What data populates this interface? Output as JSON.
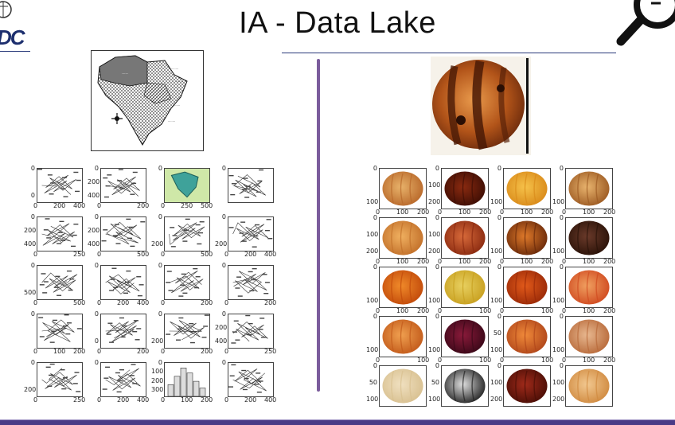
{
  "slide": {
    "title": "IA - Data Lake",
    "logo_left_text": "DC",
    "colors": {
      "title": "#111111",
      "divider": "#7b5c9c",
      "footer": "#4a3a86",
      "accent_blue": "#1d2f6e"
    }
  },
  "left_grid": {
    "cells": [
      {
        "y_ticks": [
          "0",
          "0"
        ],
        "x_ticks": [
          "0",
          "200",
          "400"
        ]
      },
      {
        "y_ticks": [
          "0",
          "200",
          "400"
        ],
        "x_ticks": [
          "0",
          "200"
        ]
      },
      {
        "y_ticks": [
          "0"
        ],
        "x_ticks": [
          "0",
          "250",
          "500"
        ]
      },
      {
        "y_ticks": [
          "0"
        ],
        "x_ticks": []
      },
      {
        "y_ticks": [
          "0",
          "200",
          "400"
        ],
        "x_ticks": [
          "0",
          "250"
        ]
      },
      {
        "y_ticks": [
          "0",
          "200",
          "400"
        ],
        "x_ticks": [
          "0",
          "500"
        ]
      },
      {
        "y_ticks": [
          "0",
          "200"
        ],
        "x_ticks": [
          "0",
          "500"
        ]
      },
      {
        "y_ticks": [
          "0",
          "200"
        ],
        "x_ticks": [
          "0",
          "200",
          "400"
        ]
      },
      {
        "y_ticks": [
          "0",
          "500"
        ],
        "x_ticks": [
          "0",
          "500"
        ]
      },
      {
        "y_ticks": [
          "0"
        ],
        "x_ticks": [
          "0",
          "200",
          "400"
        ]
      },
      {
        "y_ticks": [
          "0"
        ],
        "x_ticks": [
          "0",
          "200"
        ]
      },
      {
        "y_ticks": [
          "0"
        ],
        "x_ticks": [
          "0",
          "200"
        ]
      },
      {
        "y_ticks": [
          "0"
        ],
        "x_ticks": [
          "0",
          "100",
          "200"
        ]
      },
      {
        "y_ticks": [
          "0",
          "0"
        ],
        "x_ticks": [
          "0",
          "200"
        ]
      },
      {
        "y_ticks": [
          "0",
          "200"
        ],
        "x_ticks": [
          "0",
          "200"
        ]
      },
      {
        "y_ticks": [
          "0",
          "200",
          "400"
        ],
        "x_ticks": [
          "0",
          "250"
        ]
      },
      {
        "y_ticks": [
          "0",
          "200"
        ],
        "x_ticks": [
          "0",
          "250"
        ]
      },
      {
        "y_ticks": [
          "0"
        ],
        "x_ticks": [
          "0",
          "200",
          "400"
        ]
      },
      {
        "y_ticks": [
          "0",
          "100",
          "200",
          "300"
        ],
        "x_ticks": [
          "0",
          "100",
          "200"
        ]
      },
      {
        "y_ticks": [
          "0"
        ],
        "x_ticks": [
          "0",
          "200",
          "400"
        ]
      }
    ]
  },
  "right_grid": {
    "cells": [
      {
        "y_ticks": [
          "0",
          "100"
        ],
        "x_ticks": [
          "0",
          "100",
          "200"
        ]
      },
      {
        "y_ticks": [
          "0",
          "100",
          "200"
        ],
        "x_ticks": [
          "0",
          "100",
          "200"
        ]
      },
      {
        "y_ticks": [
          "0",
          "100"
        ],
        "x_ticks": [
          "0",
          "100",
          "200"
        ]
      },
      {
        "y_ticks": [
          "0",
          "100"
        ],
        "x_ticks": [
          "0",
          "100",
          "200"
        ]
      },
      {
        "y_ticks": [
          "0",
          "100",
          "200"
        ],
        "x_ticks": [
          "0",
          "100",
          "200"
        ]
      },
      {
        "y_ticks": [
          "0",
          "100",
          "200"
        ],
        "x_ticks": [
          "0",
          "100",
          "200"
        ]
      },
      {
        "y_ticks": [
          "0",
          "100"
        ],
        "x_ticks": [
          "0",
          "100",
          "200"
        ]
      },
      {
        "y_ticks": [
          "0",
          "100"
        ],
        "x_ticks": [
          "0",
          "100",
          "200"
        ]
      },
      {
        "y_ticks": [
          "0",
          "100"
        ],
        "x_ticks": [
          "0",
          "100",
          "200"
        ]
      },
      {
        "y_ticks": [
          "0",
          "100"
        ],
        "x_ticks": [
          "0",
          "100"
        ]
      },
      {
        "y_ticks": [
          "0",
          "100"
        ],
        "x_ticks": [
          "0",
          "100"
        ]
      },
      {
        "y_ticks": [
          "0",
          "100"
        ],
        "x_ticks": [
          "0",
          "100",
          "200"
        ]
      },
      {
        "y_ticks": [
          "0",
          "100"
        ],
        "x_ticks": [
          "0",
          "100"
        ]
      },
      {
        "y_ticks": [
          "0",
          "100"
        ],
        "x_ticks": [
          "0",
          "100"
        ]
      },
      {
        "y_ticks": [
          "0",
          "50",
          "100"
        ],
        "x_ticks": [
          "0",
          "100"
        ]
      },
      {
        "y_ticks": [
          "0",
          "100"
        ],
        "x_ticks": [
          "0",
          "100",
          "200"
        ]
      },
      {
        "y_ticks": [
          "0",
          "50",
          "100"
        ],
        "x_ticks": []
      },
      {
        "y_ticks": [
          "0",
          "50",
          "100"
        ],
        "x_ticks": []
      },
      {
        "y_ticks": [
          "0",
          "100",
          "200"
        ],
        "x_ticks": []
      },
      {
        "y_ticks": [
          "0",
          "100",
          "200"
        ],
        "x_ticks": []
      }
    ]
  }
}
